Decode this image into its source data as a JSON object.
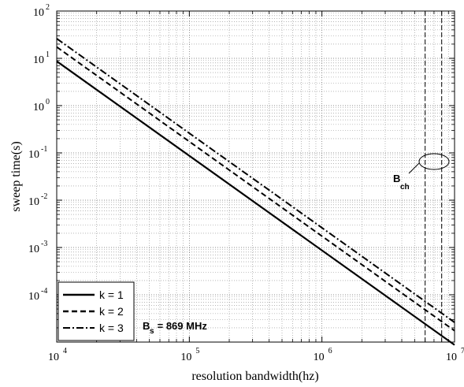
{
  "chart_data": {
    "type": "line",
    "xlabel": "resolution bandwidth(hz)",
    "ylabel": "sweep time(s)",
    "xscale": "log",
    "yscale": "log",
    "xlim": [
      10000,
      10000000
    ],
    "ylim": [
      1e-05,
      100
    ],
    "grid": true,
    "legend_position": "bottom-left",
    "x_ticks": [
      {
        "base": "10",
        "exp": "4",
        "value": 10000
      },
      {
        "base": "10",
        "exp": "5",
        "value": 100000
      },
      {
        "base": "10",
        "exp": "6",
        "value": 1000000
      },
      {
        "base": "10",
        "exp": "7",
        "value": 10000000
      }
    ],
    "y_ticks": [
      {
        "base": "10",
        "exp": "2",
        "value": 100
      },
      {
        "base": "10",
        "exp": "1",
        "value": 10
      },
      {
        "base": "10",
        "exp": "0",
        "value": 1
      },
      {
        "base": "10",
        "exp": "-1",
        "value": 0.1
      },
      {
        "base": "10",
        "exp": "-2",
        "value": 0.01
      },
      {
        "base": "10",
        "exp": "-3",
        "value": 0.001
      },
      {
        "base": "10",
        "exp": "-4",
        "value": 0.0001
      }
    ],
    "series": [
      {
        "name": "k = 1",
        "style": "solid",
        "x": [
          10000,
          10000000
        ],
        "y": [
          8.69,
          8.7e-06
        ]
      },
      {
        "name": "k = 2",
        "style": "dashed",
        "x": [
          10000,
          10000000
        ],
        "y": [
          17.4,
          1.74e-05
        ]
      },
      {
        "name": "k = 3",
        "style": "dashdot",
        "x": [
          10000,
          10000000
        ],
        "y": [
          26.1,
          2.61e-05
        ]
      }
    ],
    "vertical_lines": [
      {
        "x": 6000000,
        "style": "dashed"
      },
      {
        "x": 8000000,
        "style": "dashed"
      }
    ],
    "annotations": [
      {
        "text": "B",
        "sub": "ch",
        "target_x": 7000000,
        "target_y": 0.07
      },
      {
        "text": "B",
        "sub": "s",
        "suffix": " = 869 MHz"
      }
    ]
  }
}
